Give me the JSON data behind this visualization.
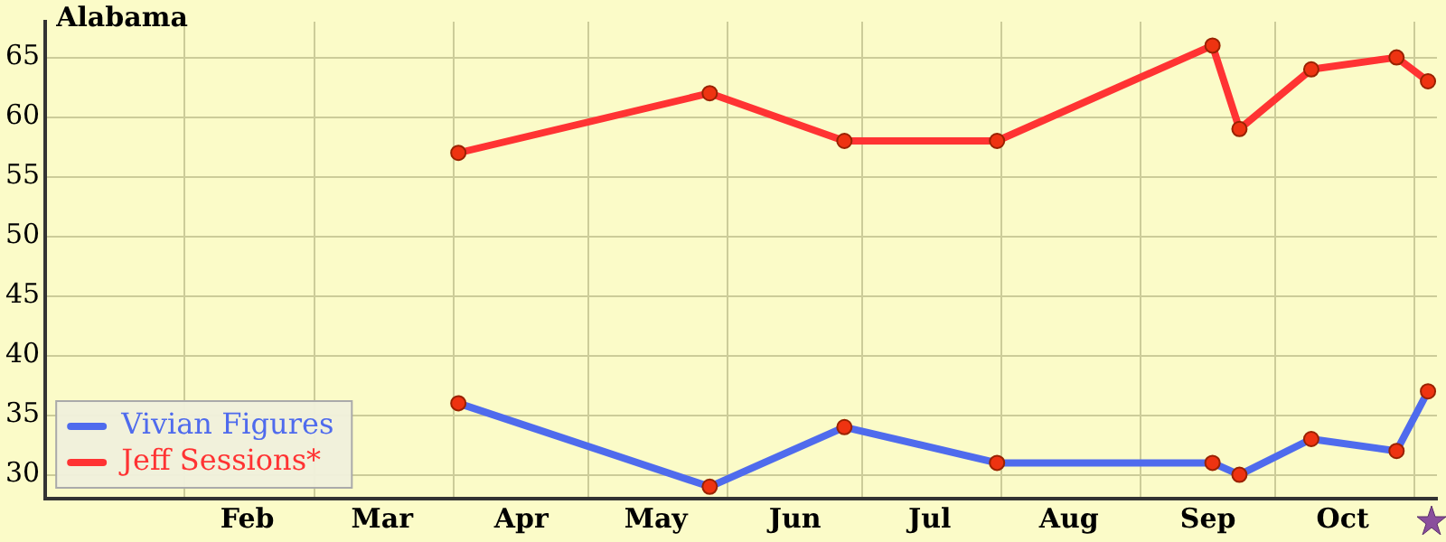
{
  "chart_data": {
    "type": "line",
    "title": "Alabama",
    "x": [
      "--04-02",
      "--05-28",
      "--06-27",
      "--07-31",
      "--09-17",
      "--09-23",
      "--10-09",
      "--10-28",
      "--11-04"
    ],
    "series": [
      {
        "name": "Vivian Figures",
        "color": "#4f6bed",
        "values": [
          36,
          29,
          34,
          31,
          31,
          30,
          33,
          32,
          37
        ]
      },
      {
        "name": "Jeff Sessions*",
        "color": "#ff3333",
        "values": [
          57,
          62,
          58,
          58,
          66,
          59,
          64,
          65,
          63
        ]
      }
    ],
    "xlim": [
      "--01-01",
      "--11-06"
    ],
    "xticks": [
      {
        "value": "--02-01",
        "label": null
      },
      {
        "value": "--02-15",
        "label": "Feb"
      },
      {
        "value": "--03-01",
        "label": null
      },
      {
        "value": "--03-16",
        "label": "Mar"
      },
      {
        "value": "--04-01",
        "label": null
      },
      {
        "value": "--04-16",
        "label": "Apr"
      },
      {
        "value": "--05-01",
        "label": null
      },
      {
        "value": "--05-16",
        "label": "May"
      },
      {
        "value": "--06-01",
        "label": null
      },
      {
        "value": "--06-16",
        "label": "Jun"
      },
      {
        "value": "--07-01",
        "label": null
      },
      {
        "value": "--07-16",
        "label": "Jul"
      },
      {
        "value": "--08-01",
        "label": null
      },
      {
        "value": "--08-16",
        "label": "Aug"
      },
      {
        "value": "--09-01",
        "label": null
      },
      {
        "value": "--09-16",
        "label": "Sep"
      },
      {
        "value": "--10-01",
        "label": null
      },
      {
        "value": "--10-16",
        "label": "Oct"
      },
      {
        "value": "--11-01",
        "label": null
      }
    ],
    "ylim": [
      28,
      68
    ],
    "yticks": [
      30,
      35,
      40,
      45,
      50,
      55,
      60,
      65
    ],
    "grid": true,
    "legend": "bottom left",
    "marker": "circle",
    "line_style": "solid"
  }
}
